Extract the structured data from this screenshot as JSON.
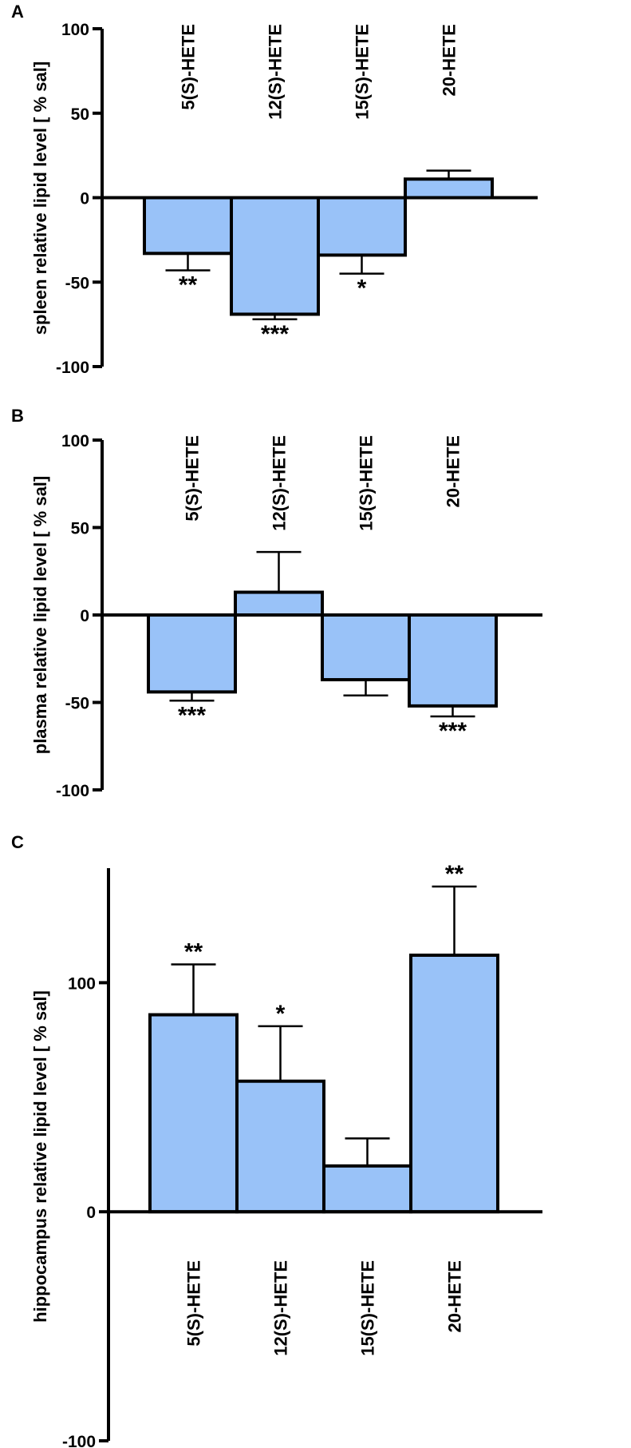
{
  "chart_data": [
    {
      "type": "bar",
      "panel": "A",
      "ylabel": "spleen relative lipid level [ % sal]",
      "categories": [
        "5(S)-HETE",
        "12(S)-HETE",
        "15(S)-HETE",
        "20-HETE"
      ],
      "values": [
        -33,
        -69,
        -34,
        11
      ],
      "errors": [
        10,
        3,
        11,
        5
      ],
      "significance": [
        "**",
        "***",
        "*",
        ""
      ],
      "ylim": [
        -100,
        100
      ],
      "yticks": [
        100,
        50,
        0,
        -50,
        -100
      ],
      "bar_color": "#99c2f8"
    },
    {
      "type": "bar",
      "panel": "B",
      "ylabel": "plasma relative lipid level [ % sal]",
      "categories": [
        "5(S)-HETE",
        "12(S)-HETE",
        "15(S)-HETE",
        "20-HETE"
      ],
      "values": [
        -44,
        13,
        -37,
        -52
      ],
      "errors": [
        5,
        23,
        9,
        6
      ],
      "significance": [
        "***",
        "",
        "",
        "***"
      ],
      "ylim": [
        -100,
        100
      ],
      "yticks": [
        100,
        50,
        0,
        -50,
        -100
      ],
      "bar_color": "#99c2f8"
    },
    {
      "type": "bar",
      "panel": "C",
      "ylabel": "hippocampus relative lipid level [ % sal]",
      "categories": [
        "5(S)-HETE",
        "12(S)-HETE",
        "15(S)-HETE",
        "20-HETE"
      ],
      "values": [
        86,
        57,
        20,
        112
      ],
      "errors": [
        22,
        24,
        12,
        30
      ],
      "significance": [
        "**",
        "*",
        "",
        "**"
      ],
      "ylim": [
        -100,
        150
      ],
      "yticks": [
        100,
        0,
        -100
      ],
      "bar_color": "#99c2f8"
    }
  ]
}
